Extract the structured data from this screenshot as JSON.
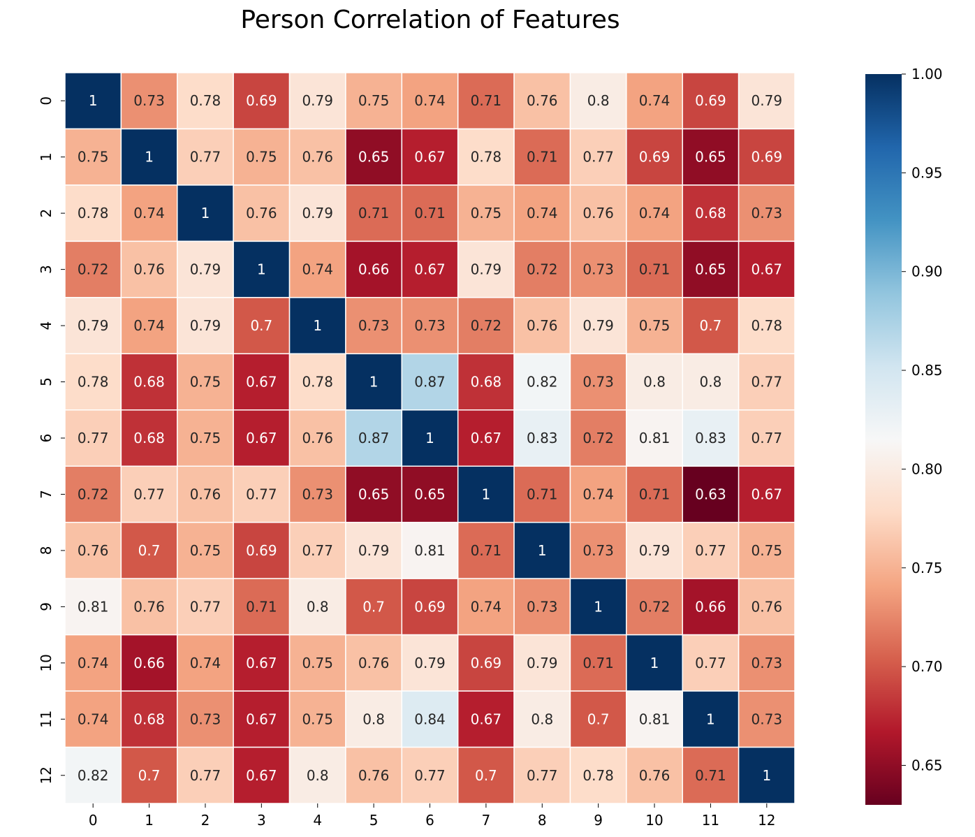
{
  "chart_data": {
    "type": "heatmap",
    "title": "Person Correlation of Features",
    "xlabel": "",
    "ylabel": "",
    "x_categories": [
      "0",
      "1",
      "2",
      "3",
      "4",
      "5",
      "6",
      "7",
      "8",
      "9",
      "10",
      "11",
      "12"
    ],
    "y_categories": [
      "0",
      "1",
      "2",
      "3",
      "4",
      "5",
      "6",
      "7",
      "8",
      "9",
      "10",
      "11",
      "12"
    ],
    "cell_labels": [
      [
        "1",
        "0.73",
        "0.78",
        "0.69",
        "0.79",
        "0.75",
        "0.74",
        "0.71",
        "0.76",
        "0.8",
        "0.74",
        "0.69",
        "0.79"
      ],
      [
        "0.75",
        "1",
        "0.77",
        "0.75",
        "0.76",
        "0.65",
        "0.67",
        "0.78",
        "0.71",
        "0.77",
        "0.69",
        "0.65",
        "0.69"
      ],
      [
        "0.78",
        "0.74",
        "1",
        "0.76",
        "0.79",
        "0.71",
        "0.71",
        "0.75",
        "0.74",
        "0.76",
        "0.74",
        "0.68",
        "0.73"
      ],
      [
        "0.72",
        "0.76",
        "0.79",
        "1",
        "0.74",
        "0.66",
        "0.67",
        "0.79",
        "0.72",
        "0.73",
        "0.71",
        "0.65",
        "0.67"
      ],
      [
        "0.79",
        "0.74",
        "0.79",
        "0.7",
        "1",
        "0.73",
        "0.73",
        "0.72",
        "0.76",
        "0.79",
        "0.75",
        "0.7",
        "0.78"
      ],
      [
        "0.78",
        "0.68",
        "0.75",
        "0.67",
        "0.78",
        "1",
        "0.87",
        "0.68",
        "0.82",
        "0.73",
        "0.8",
        "0.8",
        "0.77"
      ],
      [
        "0.77",
        "0.68",
        "0.75",
        "0.67",
        "0.76",
        "0.87",
        "1",
        "0.67",
        "0.83",
        "0.72",
        "0.81",
        "0.83",
        "0.77"
      ],
      [
        "0.72",
        "0.77",
        "0.76",
        "0.77",
        "0.73",
        "0.65",
        "0.65",
        "1",
        "0.71",
        "0.74",
        "0.71",
        "0.63",
        "0.67"
      ],
      [
        "0.76",
        "0.7",
        "0.75",
        "0.69",
        "0.77",
        "0.79",
        "0.81",
        "0.71",
        "1",
        "0.73",
        "0.79",
        "0.77",
        "0.75"
      ],
      [
        "0.81",
        "0.76",
        "0.77",
        "0.71",
        "0.8",
        "0.7",
        "0.69",
        "0.74",
        "0.73",
        "1",
        "0.72",
        "0.66",
        "0.76"
      ],
      [
        "0.74",
        "0.66",
        "0.74",
        "0.67",
        "0.75",
        "0.76",
        "0.79",
        "0.69",
        "0.79",
        "0.71",
        "1",
        "0.77",
        "0.73"
      ],
      [
        "0.74",
        "0.68",
        "0.73",
        "0.67",
        "0.75",
        "0.8",
        "0.84",
        "0.67",
        "0.8",
        "0.7",
        "0.81",
        "1",
        "0.73"
      ],
      [
        "0.82",
        "0.7",
        "0.77",
        "0.67",
        "0.8",
        "0.76",
        "0.77",
        "0.7",
        "0.77",
        "0.78",
        "0.76",
        "0.71",
        "1"
      ]
    ],
    "colorbar": {
      "range": [
        0.63,
        1.0
      ],
      "ticks": [
        "0.65",
        "0.70",
        "0.75",
        "0.80",
        "0.85",
        "0.90",
        "0.95",
        "1.00"
      ],
      "colormap": [
        "#67001f",
        "#b2182b",
        "#d6604d",
        "#f4a582",
        "#fddbc7",
        "#f7f7f7",
        "#d1e5f0",
        "#92c5de",
        "#4393c3",
        "#2166ac",
        "#053061"
      ]
    },
    "grid": false,
    "cell_border_color": "#ffffff"
  }
}
